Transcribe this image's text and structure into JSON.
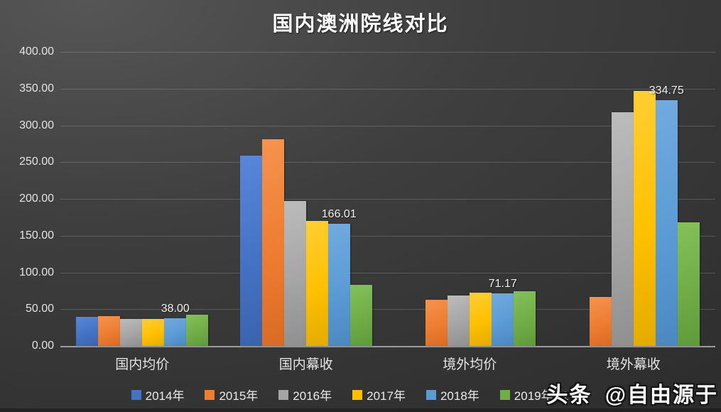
{
  "watermark": {
    "brand": "头条",
    "handle": "@自由源于"
  },
  "chart_data": {
    "type": "bar",
    "title": "国内澳洲院线对比",
    "categories": [
      "国内均价",
      "国内幕收",
      "境外均价",
      "境外幕收"
    ],
    "series": [
      {
        "name": "2014年",
        "color": "#4472C4",
        "color_light": "#5886d8",
        "color_dark": "#3a63ad",
        "values": [
          40,
          259,
          null,
          null
        ]
      },
      {
        "name": "2015年",
        "color": "#ED7D31",
        "color_light": "#f6934e",
        "color_dark": "#d96b22",
        "values": [
          41,
          281,
          63,
          67
        ]
      },
      {
        "name": "2016年",
        "color": "#A5A5A5",
        "color_light": "#bcbcbc",
        "color_dark": "#8f8f8f",
        "values": [
          37,
          197,
          69,
          318
        ]
      },
      {
        "name": "2017年",
        "color": "#FFC000",
        "color_light": "#ffce33",
        "color_dark": "#e3ab00",
        "values": [
          37,
          170,
          72,
          347
        ]
      },
      {
        "name": "2018年",
        "color": "#5B9BD5",
        "color_light": "#71aadf",
        "color_dark": "#4b88c2",
        "values": [
          38.0,
          166.01,
          71.17,
          334.75
        ],
        "labels": [
          "38.00",
          "166.01",
          "71.17",
          "334.75"
        ]
      },
      {
        "name": "2019年H1",
        "color": "#70AD47",
        "color_light": "#84c159",
        "color_dark": "#5f9a3a",
        "values": [
          43,
          83,
          74,
          168
        ]
      }
    ],
    "ylim": [
      0,
      400
    ],
    "ytick_step": 50,
    "yticks": [
      "400.00",
      "350.00",
      "300.00",
      "250.00",
      "200.00",
      "150.00",
      "100.00",
      "50.00",
      "0.00"
    ],
    "grid": true,
    "legend_position": "bottom",
    "data_labels_series": "2018年"
  }
}
